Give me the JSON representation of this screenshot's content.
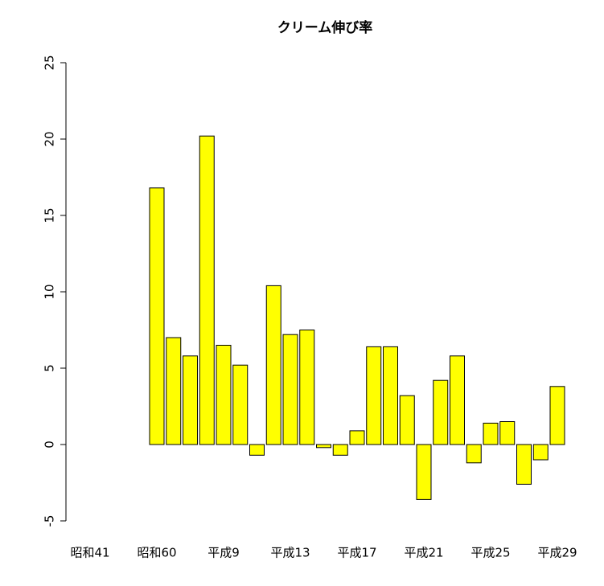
{
  "chart_data": {
    "type": "bar",
    "title": "クリーム伸び率",
    "categories": [
      "昭和41",
      null,
      null,
      null,
      "昭和60",
      null,
      null,
      null,
      "平成9",
      null,
      null,
      null,
      "平成13",
      null,
      null,
      null,
      "平成17",
      null,
      null,
      null,
      "平成21",
      null,
      null,
      null,
      "平成25",
      null,
      null,
      null,
      "平成29"
    ],
    "values": [
      null,
      null,
      null,
      null,
      16.8,
      7.0,
      5.8,
      20.2,
      6.5,
      5.2,
      -0.7,
      10.4,
      7.2,
      7.5,
      -0.2,
      -0.7,
      0.9,
      6.4,
      6.4,
      3.2,
      -3.6,
      4.2,
      5.8,
      -1.2,
      1.4,
      1.5,
      -2.6,
      -1.0,
      3.8
    ],
    "color": "#ffff00",
    "ylim": [
      -5,
      25
    ],
    "yticks": [
      -5,
      0,
      5,
      10,
      15,
      20,
      25
    ],
    "grid": false
  }
}
